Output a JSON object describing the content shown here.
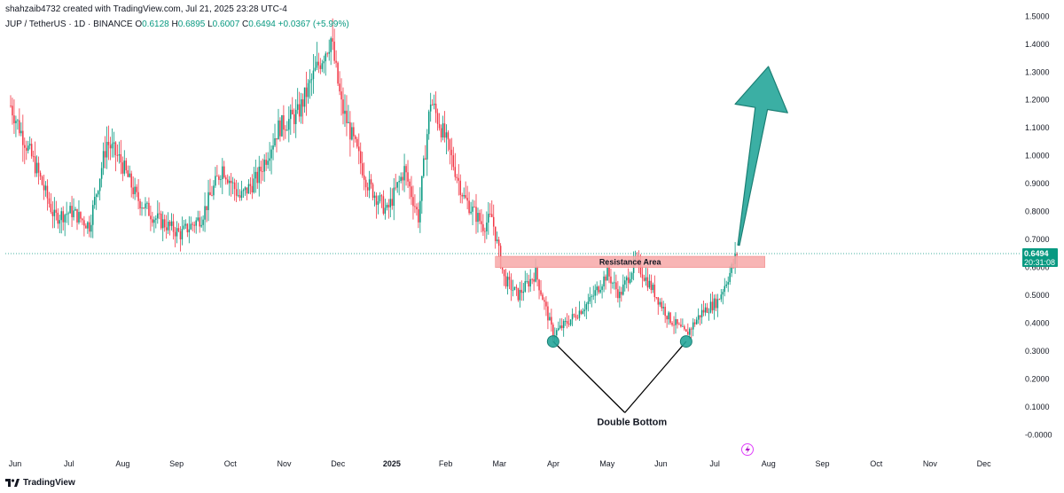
{
  "header": {
    "attribution": "shahzaib4732 created with TradingView.com, Jul 21, 2025 23:28 UTC-4",
    "symbol": "JUP / TetherUS · 1D · BINANCE",
    "o_label": "O",
    "o_value": "0.6128",
    "h_label": "H",
    "h_value": "0.6895",
    "l_label": "L",
    "l_value": "0.6007",
    "c_label": "C",
    "c_value": "0.6494",
    "change": "+0.0367 (+5.99%)"
  },
  "branding": {
    "name": "TradingView",
    "logo_icon": "tradingview-logo-icon"
  },
  "colors": {
    "up": "#089981",
    "down": "#f23645",
    "accent": "#26a69a",
    "resistance": "#f7a8a8"
  },
  "price_tag": {
    "value": "0.6494",
    "countdown": "20:31:08"
  },
  "annotations": {
    "resistance_label": "Resistance Area",
    "double_bottom_label": "Double Bottom",
    "lightning_icon": "lightning-icon"
  },
  "chart_data": {
    "type": "candlestick",
    "ylim": [
      -0.03,
      1.52
    ],
    "grid": false,
    "last_price": 0.6494,
    "y_ticks": [
      "1.5000",
      "1.4000",
      "1.3000",
      "1.2000",
      "1.1000",
      "1.0000",
      "0.9000",
      "0.8000",
      "0.7000",
      "0.6000",
      "0.5000",
      "0.4000",
      "0.3000",
      "0.2000",
      "0.1000",
      "-0.0000"
    ],
    "x_labels": [
      "Jun",
      "Jul",
      "Aug",
      "Sep",
      "Oct",
      "Nov",
      "Dec",
      "2025",
      "Feb",
      "Mar",
      "Apr",
      "May",
      "Jun",
      "Jul",
      "Aug",
      "Sep",
      "Oct",
      "Nov",
      "Dec"
    ],
    "path_x": [
      "2024-06-01",
      "2024-06-06",
      "2024-06-16",
      "2024-06-26",
      "2024-07-06",
      "2024-07-16",
      "2024-07-26",
      "2024-08-03",
      "2024-08-12",
      "2024-08-22",
      "2024-09-06",
      "2024-09-18",
      "2024-09-30",
      "2024-10-10",
      "2024-10-20",
      "2024-11-01",
      "2024-11-12",
      "2024-11-22",
      "2024-12-01",
      "2024-12-07",
      "2024-12-14",
      "2024-12-22",
      "2025-01-02",
      "2025-01-12",
      "2025-01-20",
      "2025-01-27",
      "2025-02-05",
      "2025-02-15",
      "2025-02-26",
      "2025-03-03",
      "2025-03-10",
      "2025-03-18",
      "2025-03-28",
      "2025-04-07",
      "2025-04-18",
      "2025-04-28",
      "2025-05-08",
      "2025-05-15",
      "2025-05-24",
      "2025-06-03",
      "2025-06-12",
      "2025-06-22",
      "2025-07-01",
      "2025-07-10",
      "2025-07-17",
      "2025-07-21"
    ],
    "path_y": [
      1.18,
      1.1,
      0.95,
      0.78,
      0.8,
      0.75,
      1.05,
      0.98,
      0.85,
      0.78,
      0.72,
      0.78,
      0.96,
      0.85,
      0.92,
      1.1,
      1.15,
      1.3,
      1.42,
      1.18,
      1.05,
      0.9,
      0.8,
      0.95,
      0.78,
      1.2,
      1.05,
      0.85,
      0.75,
      0.78,
      0.56,
      0.5,
      0.58,
      0.36,
      0.42,
      0.48,
      0.58,
      0.5,
      0.62,
      0.52,
      0.42,
      0.36,
      0.44,
      0.48,
      0.58,
      0.65
    ],
    "resistance_zone": {
      "low": 0.6,
      "high": 0.64,
      "start": "2025-03-05",
      "end": "2025-08-06"
    },
    "double_bottom_points": [
      {
        "date": "2025-04-07",
        "price": 0.335
      },
      {
        "date": "2025-06-22",
        "price": 0.335
      }
    ],
    "double_bottom_apex": {
      "date": "2025-05-18",
      "price": 0.08
    },
    "projection_arrow": {
      "from_date": "2025-07-22",
      "from_price": 0.68,
      "to_date": "2025-08-08",
      "to_price": 1.32
    }
  }
}
